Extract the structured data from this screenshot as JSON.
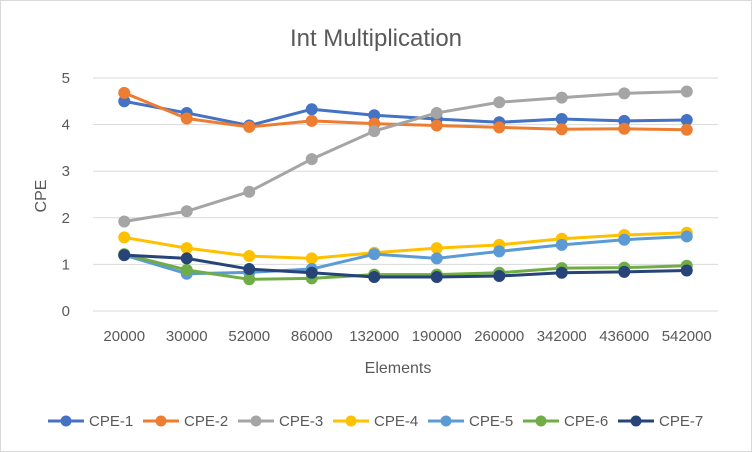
{
  "chart_data": {
    "type": "line",
    "title": "Int Multiplication",
    "xlabel": "Elements",
    "ylabel": "CPE",
    "categories": [
      "20000",
      "30000",
      "52000",
      "86000",
      "132000",
      "190000",
      "260000",
      "342000",
      "436000",
      "542000"
    ],
    "ylim": [
      0,
      5
    ],
    "yticks": [
      "0",
      "1",
      "2",
      "3",
      "4",
      "5"
    ],
    "grid": true,
    "legend": "bottom",
    "series": [
      {
        "name": "CPE-1",
        "color": "#4472c4",
        "values": [
          4.5,
          4.25,
          3.98,
          4.33,
          4.2,
          4.12,
          4.05,
          4.12,
          4.08,
          4.1
        ]
      },
      {
        "name": "CPE-2",
        "color": "#ed7d31",
        "values": [
          4.68,
          4.13,
          3.95,
          4.08,
          4.02,
          3.98,
          3.94,
          3.9,
          3.91,
          3.89
        ]
      },
      {
        "name": "CPE-3",
        "color": "#a5a5a5",
        "values": [
          1.92,
          2.14,
          2.56,
          3.26,
          3.86,
          4.25,
          4.48,
          4.58,
          4.67,
          4.71
        ]
      },
      {
        "name": "CPE-4",
        "color": "#ffc000",
        "values": [
          1.58,
          1.35,
          1.18,
          1.13,
          1.25,
          1.35,
          1.42,
          1.55,
          1.63,
          1.68
        ]
      },
      {
        "name": "CPE-5",
        "color": "#5b9bd5",
        "values": [
          1.2,
          0.8,
          0.83,
          0.9,
          1.22,
          1.13,
          1.28,
          1.42,
          1.53,
          1.6
        ]
      },
      {
        "name": "CPE-6",
        "color": "#70ad47",
        "values": [
          1.22,
          0.88,
          0.68,
          0.7,
          0.78,
          0.78,
          0.82,
          0.92,
          0.93,
          0.97
        ]
      },
      {
        "name": "CPE-7",
        "color": "#264478",
        "values": [
          1.2,
          1.13,
          0.9,
          0.82,
          0.73,
          0.73,
          0.75,
          0.82,
          0.84,
          0.87
        ]
      }
    ]
  }
}
